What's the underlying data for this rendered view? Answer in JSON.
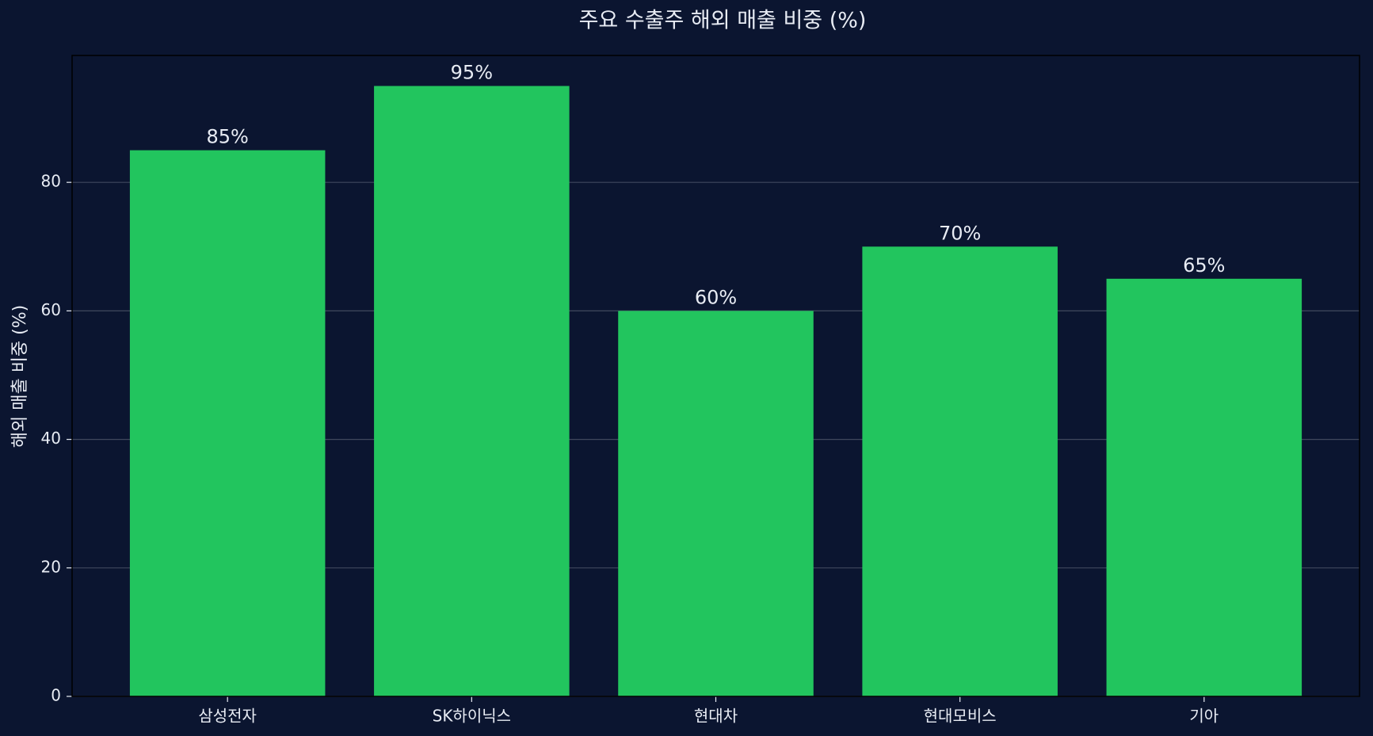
{
  "chart_data": {
    "type": "bar",
    "title": "주요 수출주 해외 매출 비중 (%)",
    "y_label": "해외 매출 비중 (%)",
    "categories": [
      "삼성전자",
      "SK하이닉스",
      "현대차",
      "현대모비스",
      "기아"
    ],
    "values": [
      85,
      95,
      60,
      70,
      65
    ],
    "value_labels": [
      "85%",
      "95%",
      "60%",
      "70%",
      "65%"
    ],
    "color": "#22c55e",
    "ylim": [
      0,
      99.75
    ],
    "yticks": [
      0,
      20,
      40,
      60,
      80
    ],
    "grid": true
  }
}
